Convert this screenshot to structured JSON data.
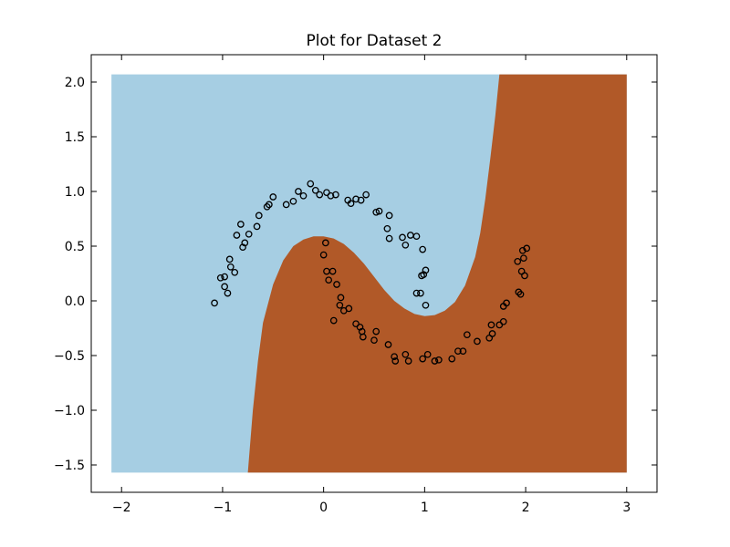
{
  "chart_data": {
    "type": "scatter",
    "title": "Plot for Dataset 2",
    "xlabel": "",
    "ylabel": "",
    "xlim": [
      -2.3,
      3.3
    ],
    "ylim": [
      -1.75,
      2.25
    ],
    "grid": false,
    "x_ticks": [
      -2,
      -1,
      0,
      1,
      2,
      3
    ],
    "x_tick_labels": [
      "−2",
      "−1",
      "0",
      "1",
      "2",
      "3"
    ],
    "y_ticks": [
      -1.5,
      -1.0,
      -0.5,
      0.0,
      0.5,
      1.0,
      1.5,
      2.0
    ],
    "y_tick_labels": [
      "−1.5",
      "−1.0",
      "−0.5",
      "0.0",
      "0.5",
      "1.0",
      "1.5",
      "2.0"
    ],
    "region_extent": {
      "x": [
        -2.1,
        3.0
      ],
      "y": [
        -1.57,
        2.07
      ]
    },
    "regions": [
      {
        "class": 0,
        "color": "#a6cee3"
      },
      {
        "class": 1,
        "color": "#b15928"
      }
    ],
    "decision_boundary": [
      [
        -0.75,
        -1.57
      ],
      [
        -0.7,
        -1.0
      ],
      [
        -0.65,
        -0.55
      ],
      [
        -0.6,
        -0.2
      ],
      [
        -0.5,
        0.15
      ],
      [
        -0.4,
        0.37
      ],
      [
        -0.3,
        0.5
      ],
      [
        -0.2,
        0.56
      ],
      [
        -0.1,
        0.59
      ],
      [
        0.0,
        0.59
      ],
      [
        0.1,
        0.57
      ],
      [
        0.2,
        0.52
      ],
      [
        0.3,
        0.44
      ],
      [
        0.4,
        0.34
      ],
      [
        0.5,
        0.22
      ],
      [
        0.6,
        0.1
      ],
      [
        0.7,
        0.0
      ],
      [
        0.8,
        -0.07
      ],
      [
        0.9,
        -0.12
      ],
      [
        1.0,
        -0.14
      ],
      [
        1.1,
        -0.13
      ],
      [
        1.2,
        -0.09
      ],
      [
        1.3,
        -0.01
      ],
      [
        1.4,
        0.14
      ],
      [
        1.5,
        0.4
      ],
      [
        1.55,
        0.62
      ],
      [
        1.6,
        0.93
      ],
      [
        1.65,
        1.3
      ],
      [
        1.7,
        1.7
      ],
      [
        1.74,
        2.07
      ]
    ],
    "series": [
      {
        "marker": "open-circle",
        "color": "#000000",
        "points": [
          [
            -1.08,
            -0.02
          ],
          [
            -1.02,
            0.21
          ],
          [
            -0.98,
            0.22
          ],
          [
            -0.98,
            0.13
          ],
          [
            -0.95,
            0.07
          ],
          [
            -0.93,
            0.38
          ],
          [
            -0.92,
            0.31
          ],
          [
            -0.88,
            0.26
          ],
          [
            -0.86,
            0.6
          ],
          [
            -0.82,
            0.7
          ],
          [
            -0.8,
            0.49
          ],
          [
            -0.78,
            0.53
          ],
          [
            -0.74,
            0.61
          ],
          [
            -0.66,
            0.68
          ],
          [
            -0.64,
            0.78
          ],
          [
            -0.56,
            0.86
          ],
          [
            -0.54,
            0.88
          ],
          [
            -0.5,
            0.95
          ],
          [
            -0.37,
            0.88
          ],
          [
            -0.3,
            0.91
          ],
          [
            -0.25,
            1.0
          ],
          [
            -0.2,
            0.96
          ],
          [
            -0.13,
            1.07
          ],
          [
            -0.08,
            1.01
          ],
          [
            -0.04,
            0.97
          ],
          [
            0.03,
            0.99
          ],
          [
            0.07,
            0.96
          ],
          [
            0.12,
            0.97
          ],
          [
            0.24,
            0.92
          ],
          [
            0.27,
            0.89
          ],
          [
            0.32,
            0.93
          ],
          [
            0.37,
            0.92
          ],
          [
            0.42,
            0.97
          ],
          [
            0.52,
            0.81
          ],
          [
            0.55,
            0.82
          ],
          [
            0.63,
            0.66
          ],
          [
            0.65,
            0.57
          ],
          [
            0.65,
            0.78
          ],
          [
            0.78,
            0.58
          ],
          [
            0.81,
            0.51
          ],
          [
            0.86,
            0.6
          ],
          [
            0.92,
            0.59
          ],
          [
            0.97,
            0.23
          ],
          [
            0.98,
            0.47
          ],
          [
            0.99,
            0.24
          ],
          [
            1.01,
            0.28
          ],
          [
            0.92,
            0.07
          ],
          [
            0.96,
            0.07
          ],
          [
            1.01,
            -0.04
          ],
          [
            0.0,
            0.42
          ],
          [
            0.02,
            0.53
          ],
          [
            0.03,
            0.27
          ],
          [
            0.05,
            0.19
          ],
          [
            0.09,
            0.27
          ],
          [
            0.1,
            -0.18
          ],
          [
            0.13,
            0.15
          ],
          [
            0.16,
            -0.04
          ],
          [
            0.17,
            0.03
          ],
          [
            0.2,
            -0.09
          ],
          [
            0.25,
            -0.07
          ],
          [
            0.32,
            -0.21
          ],
          [
            0.36,
            -0.24
          ],
          [
            0.38,
            -0.28
          ],
          [
            0.39,
            -0.33
          ],
          [
            0.5,
            -0.36
          ],
          [
            0.52,
            -0.28
          ],
          [
            0.64,
            -0.4
          ],
          [
            0.7,
            -0.51
          ],
          [
            0.71,
            -0.55
          ],
          [
            0.81,
            -0.49
          ],
          [
            0.84,
            -0.55
          ],
          [
            0.98,
            -0.53
          ],
          [
            1.03,
            -0.49
          ],
          [
            1.1,
            -0.55
          ],
          [
            1.14,
            -0.54
          ],
          [
            1.27,
            -0.53
          ],
          [
            1.33,
            -0.46
          ],
          [
            1.38,
            -0.46
          ],
          [
            1.42,
            -0.31
          ],
          [
            1.52,
            -0.37
          ],
          [
            1.64,
            -0.34
          ],
          [
            1.66,
            -0.22
          ],
          [
            1.67,
            -0.3
          ],
          [
            1.74,
            -0.22
          ],
          [
            1.78,
            -0.19
          ],
          [
            1.78,
            -0.05
          ],
          [
            1.81,
            -0.02
          ],
          [
            1.93,
            0.08
          ],
          [
            1.95,
            0.06
          ],
          [
            1.92,
            0.36
          ],
          [
            1.96,
            0.27
          ],
          [
            1.97,
            0.46
          ],
          [
            1.99,
            0.23
          ],
          [
            2.01,
            0.48
          ],
          [
            1.98,
            0.39
          ]
        ]
      }
    ]
  }
}
